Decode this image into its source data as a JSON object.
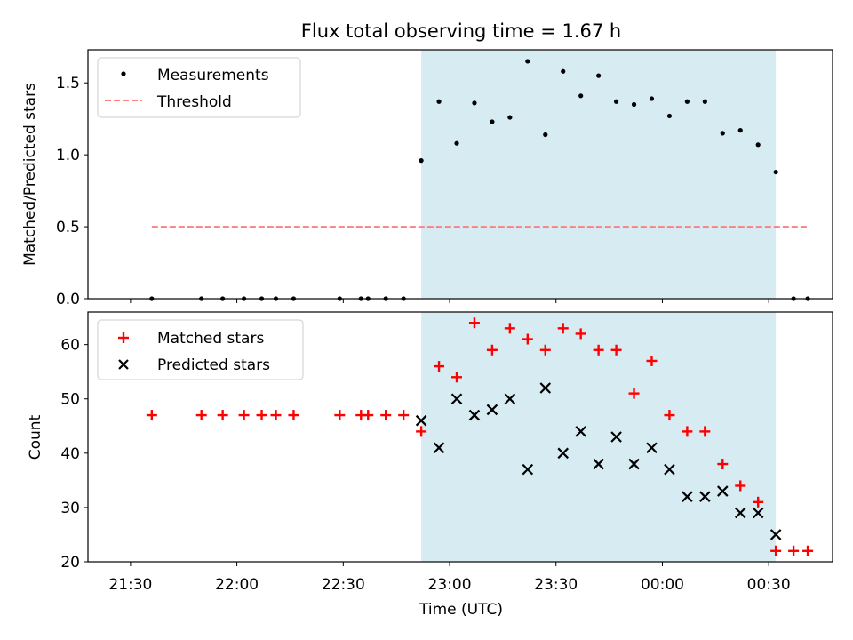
{
  "chart_data": [
    {
      "type": "scatter",
      "title": "Flux total observing time = 1.67 h",
      "xlabel": "",
      "ylabel": "Matched/Predicted stars",
      "ylim": [
        0,
        1.73
      ],
      "yticks": [
        "0.0",
        "0.5",
        "1.0",
        "1.5"
      ],
      "legend": {
        "placement": "top-left",
        "entries": [
          "Measurements",
          "Threshold"
        ]
      },
      "shaded_interval": {
        "start": "22:52",
        "end": "00:32",
        "color": "#add8e6"
      },
      "threshold": {
        "value": 0.5,
        "from": "21:36",
        "to": "00:41",
        "color": "#ff7f7f",
        "style": "dashed"
      },
      "series": [
        {
          "name": "Measurements",
          "marker": "dot",
          "color": "#000000",
          "x": [
            "21:36",
            "21:50",
            "21:56",
            "22:02",
            "22:07",
            "22:11",
            "22:16",
            "22:29",
            "22:35",
            "22:37",
            "22:42",
            "22:47",
            "22:52",
            "22:57",
            "23:02",
            "23:07",
            "23:12",
            "23:17",
            "23:22",
            "23:27",
            "23:32",
            "23:37",
            "23:42",
            "23:47",
            "23:52",
            "23:57",
            "00:02",
            "00:07",
            "00:12",
            "00:17",
            "00:22",
            "00:27",
            "00:32",
            "00:37",
            "00:41"
          ],
          "y": [
            0,
            0,
            0,
            0,
            0,
            0,
            0,
            0,
            0,
            0,
            0,
            0,
            0.96,
            1.37,
            1.08,
            1.36,
            1.23,
            1.26,
            1.65,
            1.14,
            1.58,
            1.41,
            1.55,
            1.37,
            1.35,
            1.39,
            1.27,
            1.37,
            1.37,
            1.15,
            1.17,
            1.07,
            0.88,
            0,
            0
          ]
        }
      ]
    },
    {
      "type": "scatter",
      "title": "",
      "xlabel": "Time (UTC)",
      "ylabel": "Count",
      "ylim": [
        20,
        66
      ],
      "yticks": [
        "20",
        "30",
        "40",
        "50",
        "60"
      ],
      "xticks": [
        "21:30",
        "22:00",
        "22:30",
        "23:00",
        "23:30",
        "00:00",
        "00:30"
      ],
      "legend": {
        "placement": "top-left",
        "entries": [
          "Matched stars",
          "Predicted stars"
        ]
      },
      "shaded_interval": {
        "start": "22:52",
        "end": "00:32",
        "color": "#add8e6"
      },
      "series": [
        {
          "name": "Matched stars",
          "marker": "plus",
          "color": "#ff0000",
          "x": [
            "21:36",
            "21:50",
            "21:56",
            "22:02",
            "22:07",
            "22:11",
            "22:16",
            "22:29",
            "22:35",
            "22:37",
            "22:42",
            "22:47",
            "22:52",
            "22:57",
            "23:02",
            "23:07",
            "23:12",
            "23:17",
            "23:22",
            "23:27",
            "23:32",
            "23:37",
            "23:42",
            "23:47",
            "23:52",
            "23:57",
            "00:02",
            "00:07",
            "00:12",
            "00:17",
            "00:22",
            "00:27",
            "00:32",
            "00:37",
            "00:41"
          ],
          "y": [
            47,
            47,
            47,
            47,
            47,
            47,
            47,
            47,
            47,
            47,
            47,
            47,
            44,
            56,
            54,
            64,
            59,
            63,
            61,
            59,
            63,
            62,
            59,
            59,
            51,
            57,
            47,
            44,
            44,
            38,
            34,
            31,
            22,
            22,
            22
          ]
        },
        {
          "name": "Predicted stars",
          "marker": "x",
          "color": "#000000",
          "x": [
            "22:52",
            "22:57",
            "23:02",
            "23:07",
            "23:12",
            "23:17",
            "23:22",
            "23:27",
            "23:32",
            "23:37",
            "23:42",
            "23:47",
            "23:52",
            "23:57",
            "00:02",
            "00:07",
            "00:12",
            "00:17",
            "00:22",
            "00:27",
            "00:32"
          ],
          "y": [
            46,
            41,
            50,
            47,
            48,
            50,
            37,
            52,
            40,
            44,
            38,
            43,
            38,
            41,
            37,
            32,
            32,
            33,
            29,
            29,
            25
          ]
        }
      ]
    }
  ]
}
